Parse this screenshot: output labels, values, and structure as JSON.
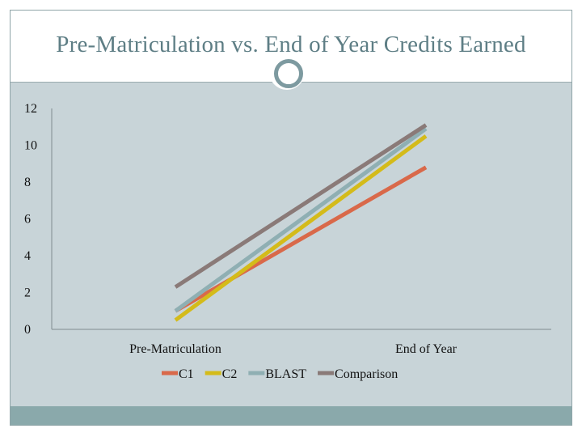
{
  "slide": {
    "title": "Pre-Matriculation vs. End of Year Credits Earned"
  },
  "colors": {
    "title_text": "#5e7e85",
    "content_bg": "#c8d4d8",
    "footer_band": "#8aa9ab",
    "badge_ring": "#7d9aa0"
  },
  "chart_data": {
    "type": "line",
    "title": "",
    "xlabel": "",
    "ylabel": "",
    "categories": [
      "Pre-Matriculation",
      "End of Year"
    ],
    "ylim": [
      0,
      12
    ],
    "yticks": [
      0,
      2,
      4,
      6,
      8,
      10,
      12
    ],
    "grid": false,
    "legend_position": "bottom",
    "series": [
      {
        "name": "C1",
        "values": [
          1.0,
          8.8
        ],
        "color": "#d9694a"
      },
      {
        "name": "C2",
        "values": [
          0.5,
          10.5
        ],
        "color": "#d4bb1a"
      },
      {
        "name": "BLAST",
        "values": [
          1.0,
          10.9
        ],
        "color": "#8fafb3"
      },
      {
        "name": "Comparison",
        "values": [
          2.3,
          11.1
        ],
        "color": "#8a7a78"
      }
    ]
  }
}
